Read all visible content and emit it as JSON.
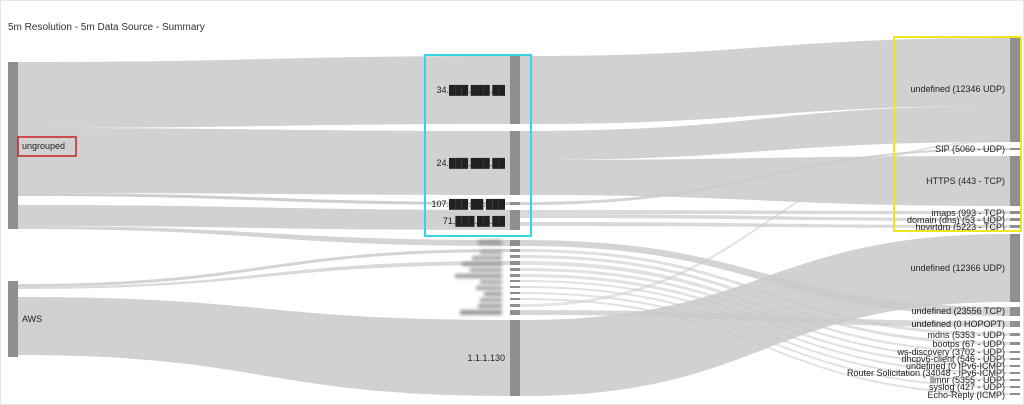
{
  "title": "5m Resolution - 5m Data Source - Summary",
  "colors": {
    "link": "#c9c9c9",
    "node": "#8f8f8f",
    "highlight_source": "#cc2222",
    "highlight_middle": "#33d6e6",
    "highlight_target": "#f0e51e"
  },
  "sources": [
    {
      "label": "ungrouped"
    },
    {
      "label": "AWS"
    }
  ],
  "middle": [
    {
      "label": "34.███.███.██"
    },
    {
      "label": "24.███.███.██"
    },
    {
      "label": "107.███.██.███"
    },
    {
      "label": "71.███.██.██"
    },
    {
      "label": "1.1.1.130"
    }
  ],
  "targets": [
    {
      "label": "undefined (12346 UDP)"
    },
    {
      "label": "SIP (5060 - UDP)"
    },
    {
      "label": "HTTPS (443 - TCP)"
    },
    {
      "label": "imaps (993 - TCP)"
    },
    {
      "label": "domain (dns) (53 - UDP)"
    },
    {
      "label": "hpvirtgrp (5223 - TCP)"
    },
    {
      "label": "undefined (12366 UDP)"
    },
    {
      "label": "undefined (23556 TCP)"
    },
    {
      "label": "undefined (0 HOPOPT)"
    },
    {
      "label": "mdns (5353 - UDP)"
    },
    {
      "label": "bootps (67 - UDP)"
    },
    {
      "label": "ws-discovery (3702 - UDP)"
    },
    {
      "label": "dhcpv6-client (546 - UDP)"
    },
    {
      "label": "undefined (0 IPv6-ICMP)"
    },
    {
      "label": "Router Solicitation (34048 - IPv6-ICMP)"
    },
    {
      "label": "llmnr (5355 - UDP)"
    },
    {
      "label": "syslog (427 - UDP)"
    },
    {
      "label": "Echo-Reply (ICMP)"
    }
  ]
}
